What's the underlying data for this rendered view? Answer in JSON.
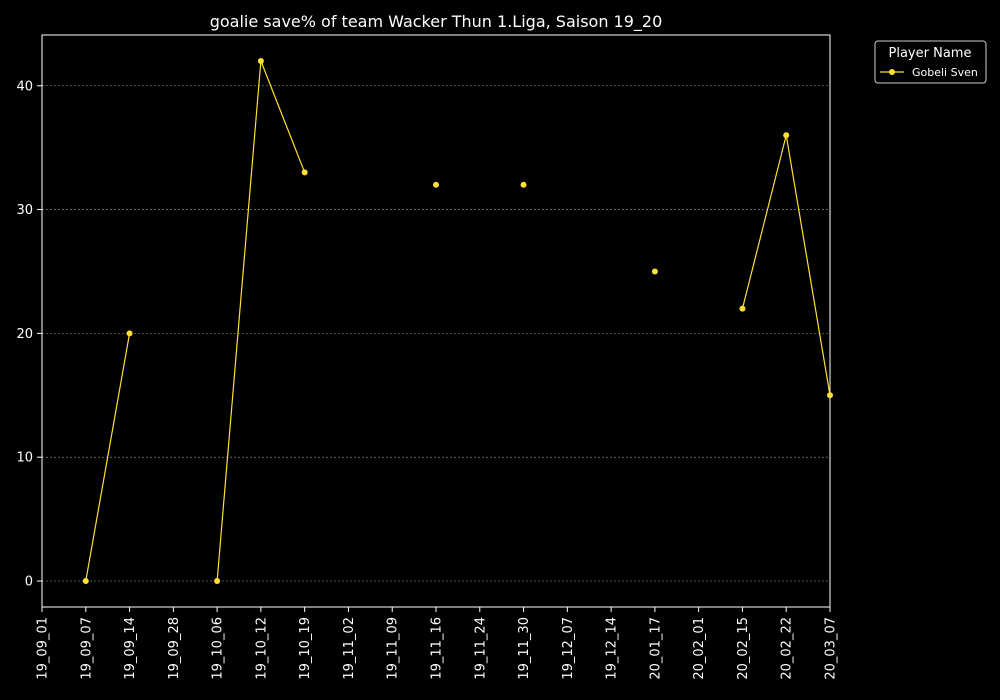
{
  "chart_data": {
    "type": "line",
    "title": "goalie save% of team Wacker Thun 1.Liga, Saison 19_20",
    "xlabel": "",
    "ylabel": "",
    "x_ticks": [
      "19_09_01",
      "19_09_07",
      "19_09_14",
      "19_09_28",
      "19_10_06",
      "19_10_12",
      "19_10_19",
      "19_11_02",
      "19_11_09",
      "19_11_16",
      "19_11_24",
      "19_11_30",
      "19_12_07",
      "19_12_14",
      "20_01_17",
      "20_02_01",
      "20_02_15",
      "20_02_22",
      "20_03_07"
    ],
    "y_ticks": [
      0,
      10,
      20,
      30,
      40
    ],
    "ylim": [
      -2.1,
      44.1
    ],
    "grid": true,
    "legend_title": "Player Name",
    "legend_position": "outside-top-right",
    "series": [
      {
        "name": "Gobeli Sven",
        "color": "#ffe033",
        "points": [
          {
            "x": "19_09_07",
            "y": 0
          },
          {
            "x": "19_09_14",
            "y": 20
          },
          {
            "x": "19_09_28",
            "y": null
          },
          {
            "x": "19_10_06",
            "y": 0
          },
          {
            "x": "19_10_12",
            "y": 42
          },
          {
            "x": "19_10_19",
            "y": 33
          },
          {
            "x": "19_11_02",
            "y": null
          },
          {
            "x": "19_11_16",
            "y": 32
          },
          {
            "x": "19_11_24",
            "y": null
          },
          {
            "x": "19_11_30",
            "y": 32
          },
          {
            "x": "19_12_07",
            "y": null
          },
          {
            "x": "20_01_17",
            "y": 25
          },
          {
            "x": "20_02_01",
            "y": null
          },
          {
            "x": "20_02_15",
            "y": 22
          },
          {
            "x": "20_02_22",
            "y": 36
          },
          {
            "x": "20_03_07",
            "y": 15
          }
        ]
      }
    ]
  }
}
